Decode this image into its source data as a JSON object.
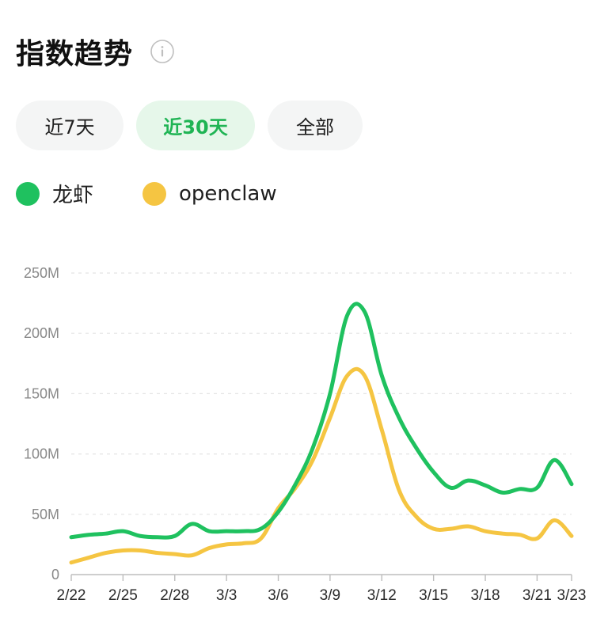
{
  "header": {
    "title": "指数趋势",
    "info_icon": "info-circle-icon"
  },
  "tabs": [
    {
      "label": "近7天",
      "active": false
    },
    {
      "label": "近30天",
      "active": true
    },
    {
      "label": "全部",
      "active": false
    }
  ],
  "colors": {
    "series_1": "#1fc15f",
    "series_2": "#f5c542",
    "active_tab_bg": "#e6f7ea",
    "active_tab_text": "#1fb454",
    "inactive_tab_bg": "#f4f5f5",
    "grid": "#e3e3e3",
    "axis": "#bdbdbd"
  },
  "chart_data": {
    "type": "line",
    "title": "",
    "xlabel": "",
    "ylabel": "",
    "ylim": [
      0,
      250
    ],
    "y_ticks": [
      0,
      50,
      100,
      150,
      200,
      250
    ],
    "y_tick_labels": [
      "0",
      "50M",
      "100M",
      "150M",
      "200M",
      "250M"
    ],
    "y_unit": "M",
    "grid": true,
    "legend_position": "top-left",
    "x": [
      "2/22",
      "2/23",
      "2/24",
      "2/25",
      "2/26",
      "2/27",
      "2/28",
      "3/1",
      "3/2",
      "3/3",
      "3/4",
      "3/5",
      "3/6",
      "3/7",
      "3/8",
      "3/9",
      "3/10",
      "3/11",
      "3/12",
      "3/13",
      "3/14",
      "3/15",
      "3/16",
      "3/17",
      "3/18",
      "3/19",
      "3/20",
      "3/21",
      "3/22",
      "3/23"
    ],
    "x_tick_labels": [
      "2/22",
      "2/25",
      "2/28",
      "3/3",
      "3/6",
      "3/9",
      "3/12",
      "3/15",
      "3/18",
      "3/21",
      "3/23"
    ],
    "series": [
      {
        "name": "龙虾",
        "values": [
          31,
          33,
          34,
          36,
          32,
          31,
          32,
          42,
          36,
          36,
          36,
          38,
          52,
          75,
          105,
          150,
          215,
          218,
          165,
          130,
          105,
          85,
          72,
          78,
          74,
          68,
          71,
          72,
          95,
          75
        ]
      },
      {
        "name": "openclaw",
        "values": [
          10,
          14,
          18,
          20,
          20,
          18,
          17,
          16,
          22,
          25,
          26,
          30,
          55,
          72,
          95,
          130,
          165,
          165,
          120,
          70,
          48,
          38,
          38,
          40,
          36,
          34,
          33,
          30,
          45,
          32
        ]
      }
    ]
  }
}
